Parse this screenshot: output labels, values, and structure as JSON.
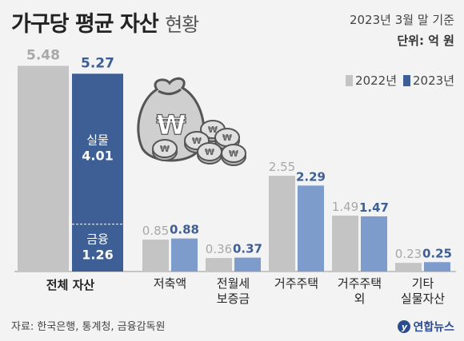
{
  "header": {
    "title_bold": "가구당 평균 자산",
    "title_light": "현황",
    "date": "2023년 3월 말 기준",
    "unit": "단위: 억 원"
  },
  "legend": [
    {
      "label": "2022년",
      "color": "#c4c4c4"
    },
    {
      "label": "2023년",
      "color": "#3d5f95"
    }
  ],
  "footer": {
    "source": "자료: 한국은행, 통계청, 금융감독원",
    "logo": "연합뉴스"
  },
  "colors": {
    "y2022": "#c4c4c4",
    "y2023_total": "#3d5f95",
    "y2023": "#7d9ccb",
    "label2022": "#a8a8a8",
    "label2023": "#3d5f95"
  },
  "icon": "money-bag-coins-icon",
  "chart_data": {
    "type": "bar",
    "total": {
      "label": "전체 자산",
      "values": [
        5.48,
        5.27
      ],
      "breakdown_2023": [
        {
          "name": "실물",
          "value": 4.01
        },
        {
          "name": "금융",
          "value": 1.26
        }
      ]
    },
    "categories": [
      "저축액",
      "전월세\n보증금",
      "거주주택",
      "거주주택\n외",
      "기타\n실물자산"
    ],
    "series": [
      {
        "name": "2022년",
        "values": [
          0.85,
          0.36,
          2.55,
          1.49,
          0.23
        ]
      },
      {
        "name": "2023년",
        "values": [
          0.88,
          0.37,
          2.29,
          1.47,
          0.25
        ]
      }
    ]
  }
}
